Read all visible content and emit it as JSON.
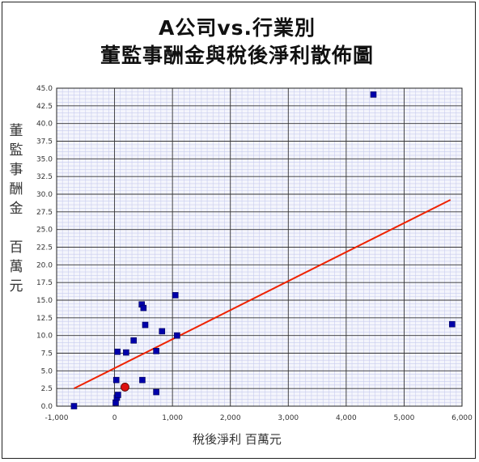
{
  "chart_data": {
    "type": "scatter",
    "title_line1": "A公司vs.行業別",
    "title_line2": "董監事酬金與稅後淨利散佈圖",
    "xlabel": "稅後淨利 百萬元",
    "ylabel_chars": [
      "董",
      "監",
      "事",
      "酬",
      "金",
      "",
      "百",
      "萬",
      "元"
    ],
    "xlim": [
      -1000,
      6000
    ],
    "ylim": [
      0,
      45
    ],
    "x_ticks": [
      -1000,
      0,
      1000,
      2000,
      3000,
      4000,
      5000,
      6000
    ],
    "x_tick_labels": [
      "-1,000",
      "0",
      "1,000",
      "2,000",
      "3,000",
      "4,000",
      "5,000",
      "6,000"
    ],
    "y_ticks": [
      0,
      2.5,
      5,
      7.5,
      10,
      12.5,
      15,
      17.5,
      20,
      22.5,
      25,
      27.5,
      30,
      32.5,
      35,
      37.5,
      40,
      42.5,
      45
    ],
    "y_tick_labels": [
      "0.0",
      "2.5",
      "5.0",
      "7.5",
      "10.0",
      "12.5",
      "15.0",
      "17.5",
      "20.0",
      "22.5",
      "25.0",
      "27.5",
      "30.0",
      "32.5",
      "35.0",
      "37.5",
      "40.0",
      "42.5",
      "45.0"
    ],
    "grid": true,
    "colors": {
      "points": "#0000aa",
      "highlight": "#dd1111",
      "trendline": "#ee2200",
      "major_grid": "#333333",
      "minor_grid": "#c8ccee"
    },
    "series": [
      {
        "points": [
          {
            "x": -700,
            "y": 0.0
          },
          {
            "x": 20,
            "y": 0.5
          },
          {
            "x": 40,
            "y": 1.2
          },
          {
            "x": 60,
            "y": 1.6
          },
          {
            "x": 30,
            "y": 3.7
          },
          {
            "x": 50,
            "y": 7.7
          },
          {
            "x": 200,
            "y": 7.6
          },
          {
            "x": 330,
            "y": 9.3
          },
          {
            "x": 470,
            "y": 14.4
          },
          {
            "x": 500,
            "y": 13.9
          },
          {
            "x": 530,
            "y": 11.5
          },
          {
            "x": 480,
            "y": 3.7
          },
          {
            "x": 720,
            "y": 2.0
          },
          {
            "x": 720,
            "y": 7.8
          },
          {
            "x": 820,
            "y": 10.6
          },
          {
            "x": 1050,
            "y": 15.7
          },
          {
            "x": 1080,
            "y": 10.0
          },
          {
            "x": 4470,
            "y": 44.1
          },
          {
            "x": 5830,
            "y": 11.6
          }
        ]
      },
      {
        "points": [
          {
            "x": 180,
            "y": 2.7
          }
        ]
      }
    ],
    "trendline": {
      "x": [
        -700,
        5800
      ],
      "y": [
        2.5,
        29.2
      ]
    }
  }
}
